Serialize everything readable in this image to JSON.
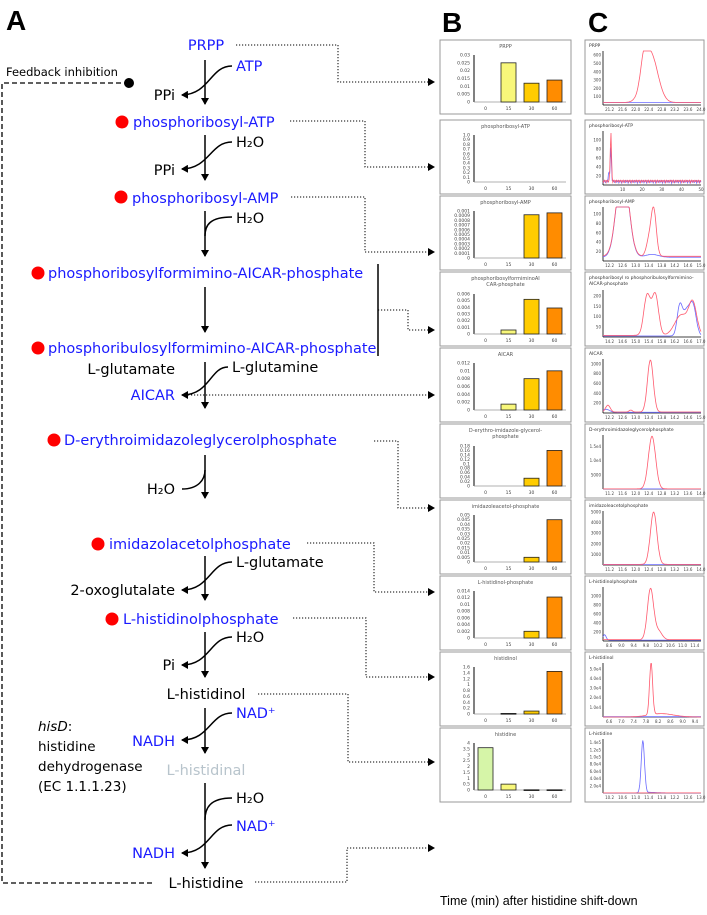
{
  "panels": {
    "a": "A",
    "b": "B",
    "c": "C"
  },
  "pathway": {
    "feedback": "Feedback inhibition",
    "prpp": "PRPP",
    "atp": "ATP",
    "ppi1": "PPi",
    "pr_atp": "phosphoribosyl-ATP",
    "h2o1": "H₂O",
    "ppi2": "PPi",
    "pr_amp": "phosphoribosyl-AMP",
    "h2o2": "H₂O",
    "prfar": "phosphoribosylformimino-AICAR-phosphate",
    "prufar": "phosphoribulosylformimino-AICAR-phosphate",
    "glutamine": "L-glutamine",
    "glutamate1": "L-glutamate",
    "aicar": "AICAR",
    "igp": "D-erythroimidazoleglycerolphosphate",
    "h2o3": "H₂O",
    "iap": "imidazolacetolphosphate",
    "glutamate2": "L-glutamate",
    "oxoglut": "2-oxoglutalate",
    "holp": "L-histidinolphosphate",
    "h2o4": "H₂O",
    "pi": "Pi",
    "histidinol": "L-histidinol",
    "nad1": "NAD⁺",
    "nadh1": "NADH",
    "histidinal": "L-histidinal",
    "h2o5": "H₂O",
    "nad2": "NAD⁺",
    "nadh2": "NADH",
    "histidine": "L-histidine",
    "enzyme": {
      "gene": "hisD",
      "line1": "histidine",
      "line2": "dehydrogenase",
      "line3": "(EC 1.1.1.23)"
    }
  },
  "colors": {
    "metabolite": "#1a1aff",
    "accumulated_dot": "#ff0000",
    "intermediate_gray": "#b8c4cc",
    "red_trace": "#ff5a6e",
    "blue_trace": "#6a6aff",
    "bar_0": "#d6f5a8",
    "bar_15": "#f8f77a",
    "bar_30": "#ffcc00",
    "bar_60": "#ff8c00"
  },
  "xlabel": "Time (min) after histidine shift-down",
  "chart_data": [
    {
      "type": "bar",
      "panel": "B",
      "title": [
        "PRPP"
      ],
      "categories": [
        "0",
        "15",
        "30",
        "60"
      ],
      "values": [
        0,
        0.025,
        0.012,
        0.014
      ],
      "ylim": [
        0,
        0.03
      ],
      "yticks": [
        "0",
        "0.005",
        "0.01",
        "0.015",
        "0.02",
        "0.025",
        "0.03"
      ]
    },
    {
      "type": "bar",
      "panel": "B",
      "title": [
        "phosphoribosyl-ATP"
      ],
      "categories": [
        "0",
        "15",
        "30",
        "60"
      ],
      "values": [
        0,
        0,
        0,
        0
      ],
      "ylim": [
        0,
        1
      ],
      "yticks": [
        "0",
        "0.1",
        "0.2",
        "0.3",
        "0.4",
        "0.5",
        "0.6",
        "0.7",
        "0.8",
        "0.9",
        "1.0"
      ]
    },
    {
      "type": "bar",
      "panel": "B",
      "title": [
        "phosphoribosyl-AMP"
      ],
      "categories": [
        "0",
        "15",
        "30",
        "60"
      ],
      "values": [
        0,
        0,
        0.00092,
        0.00096
      ],
      "ylim": [
        0,
        0.001
      ],
      "yticks": [
        "0",
        "0.0001",
        "0.0002",
        "0.0003",
        "0.0004",
        "0.0005",
        "0.0006",
        "0.0007",
        "0.0008",
        "0.0009",
        "0.001"
      ]
    },
    {
      "type": "bar",
      "panel": "B",
      "title": [
        "phosphoribosylformiminoAI",
        "CAR-phosphate"
      ],
      "categories": [
        "0",
        "15",
        "30",
        "60"
      ],
      "values": [
        0,
        0.0006,
        0.0052,
        0.0039
      ],
      "ylim": [
        0,
        0.006
      ],
      "yticks": [
        "0",
        "0.001",
        "0.002",
        "0.003",
        "0.004",
        "0.005",
        "0.006"
      ]
    },
    {
      "type": "bar",
      "panel": "B",
      "title": [
        "AICAR"
      ],
      "categories": [
        "0",
        "15",
        "30",
        "60"
      ],
      "values": [
        0,
        0.0015,
        0.008,
        0.01
      ],
      "ylim": [
        0,
        0.012
      ],
      "yticks": [
        "0",
        "0.002",
        "0.004",
        "0.006",
        "0.008",
        "0.01",
        "0.012"
      ]
    },
    {
      "type": "bar",
      "panel": "B",
      "title": [
        "D-erythro-imidazole-glycerol-",
        "phosphate"
      ],
      "categories": [
        "0",
        "15",
        "30",
        "60"
      ],
      "values": [
        0,
        0,
        0.035,
        0.16
      ],
      "ylim": [
        0,
        0.18
      ],
      "yticks": [
        "0",
        "0.02",
        "0.04",
        "0.06",
        "0.08",
        "0.1",
        "0.12",
        "0.14",
        "0.16",
        "0.18"
      ]
    },
    {
      "type": "bar",
      "panel": "B",
      "title": [
        "imidazoleacetol-phosphate"
      ],
      "categories": [
        "0",
        "15",
        "30",
        "60"
      ],
      "values": [
        0,
        0,
        0.005,
        0.045
      ],
      "ylim": [
        0,
        0.05
      ],
      "yticks": [
        "0",
        "0.005",
        "0.01",
        "0.015",
        "0.02",
        "0.025",
        "0.03",
        "0.035",
        "0.04",
        "0.045",
        "0.05"
      ]
    },
    {
      "type": "bar",
      "panel": "B",
      "title": [
        "L-histidinol-phosphate"
      ],
      "categories": [
        "0",
        "15",
        "30",
        "60"
      ],
      "values": [
        0,
        0,
        0.002,
        0.0122
      ],
      "ylim": [
        0,
        0.014
      ],
      "yticks": [
        "0",
        "0.002",
        "0.004",
        "0.006",
        "0.008",
        "0.01",
        "0.012",
        "0.014"
      ]
    },
    {
      "type": "bar",
      "panel": "B",
      "title": [
        "histidinol"
      ],
      "categories": [
        "0",
        "15",
        "30",
        "60"
      ],
      "values": [
        0,
        0.02,
        0.1,
        1.45
      ],
      "ylim": [
        0,
        1.6
      ],
      "yticks": [
        "0",
        "0.2",
        "0.4",
        "0.6",
        "0.8",
        "1",
        "1.2",
        "1.4",
        "1.6"
      ]
    },
    {
      "type": "bar",
      "panel": "B",
      "title": [
        "histidine"
      ],
      "categories": [
        "0",
        "15",
        "30",
        "60"
      ],
      "values": [
        3.6,
        0.5,
        0.02,
        0.02
      ],
      "ylim": [
        0,
        4
      ],
      "yticks": [
        "0",
        "0.5",
        "1",
        "1.5",
        "2",
        "2.5",
        "3",
        "3.5",
        "4"
      ]
    },
    {
      "type": "line",
      "panel": "C",
      "title": [
        "PRPP"
      ],
      "xlim": [
        21.0,
        24.0
      ],
      "ylim": [
        0,
        650
      ],
      "xticks": [
        "21.2",
        "21.6",
        "22.0",
        "22.4",
        "22.8",
        "23.2",
        "23.6",
        "24.0"
      ],
      "yticks": [
        "100",
        "200",
        "300",
        "400",
        "500",
        "600"
      ],
      "red": {
        "baseline": 30,
        "peaks": [
          [
            22.45,
            600,
            0.22
          ],
          [
            22.25,
            250,
            0.1
          ]
        ]
      },
      "blue": {
        "baseline": 30,
        "peaks": []
      }
    },
    {
      "type": "line",
      "panel": "C",
      "title": [
        "phosphoribosyl-ATP"
      ],
      "xlim": [
        0,
        50
      ],
      "ylim": [
        0,
        120
      ],
      "xticks": [
        "10",
        "20",
        "30",
        "40",
        "50"
      ],
      "yticks": [
        "20",
        "40",
        "60",
        "80",
        "100"
      ],
      "red": {
        "baseline": 5,
        "peaks": [
          [
            4,
            110,
            0.3
          ]
        ]
      },
      "blue": {
        "baseline": 4,
        "peaks": [
          [
            4,
            75,
            0.3
          ],
          [
            3,
            20,
            0.3
          ]
        ]
      }
    },
    {
      "type": "line",
      "panel": "C",
      "title": [
        "phosphoribosyl-AMP"
      ],
      "xlim": [
        12.0,
        15.0
      ],
      "ylim": [
        0,
        115
      ],
      "xticks": [
        "12.2",
        "12.6",
        "13.0",
        "13.4",
        "13.8",
        "14.2",
        "14.6",
        "15.0"
      ],
      "yticks": [
        "20",
        "40",
        "60",
        "80",
        "100"
      ],
      "red": {
        "baseline": 10,
        "peaks": [
          [
            12.6,
            200,
            0.18
          ],
          [
            13.55,
            100,
            0.08
          ],
          [
            13.4,
            30,
            0.08
          ]
        ]
      },
      "blue": {
        "baseline": 8,
        "peaks": [
          [
            12.6,
            200,
            0.18
          ],
          [
            13.5,
            6,
            0.2
          ]
        ]
      }
    },
    {
      "type": "line",
      "panel": "C",
      "title": [
        "phosphoribosyl ro phosphoribulosylformimino-",
        "AICAR-phosphate"
      ],
      "xlim": [
        14.0,
        17.0
      ],
      "ylim": [
        0,
        230
      ],
      "xticks": [
        "14.2",
        "14.6",
        "15.0",
        "15.4",
        "15.8",
        "16.2",
        "16.6",
        "17.0"
      ],
      "yticks": [
        "50",
        "100",
        "150",
        "200"
      ],
      "red": {
        "baseline": 8,
        "peaks": [
          [
            15.35,
            195,
            0.1
          ],
          [
            15.6,
            200,
            0.1
          ],
          [
            16.4,
            100,
            0.2
          ],
          [
            16.75,
            150,
            0.12
          ]
        ]
      },
      "blue": {
        "baseline": 5,
        "peaks": [
          [
            16.35,
            145,
            0.08
          ],
          [
            16.55,
            110,
            0.1
          ],
          [
            16.75,
            150,
            0.1
          ]
        ]
      }
    },
    {
      "type": "line",
      "panel": "C",
      "title": [
        "AICAR"
      ],
      "xlim": [
        12.0,
        15.0
      ],
      "ylim": [
        0,
        1100
      ],
      "xticks": [
        "12.2",
        "12.6",
        "13.0",
        "13.4",
        "13.8",
        "14.2",
        "14.6",
        "15.0"
      ],
      "yticks": [
        "200",
        "400",
        "600",
        "800",
        "1000"
      ],
      "red": {
        "baseline": 20,
        "peaks": [
          [
            13.45,
            1060,
            0.09
          ],
          [
            12.15,
            140,
            0.07
          ],
          [
            12.85,
            40,
            0.05
          ]
        ]
      },
      "blue": {
        "baseline": 15,
        "peaks": [
          [
            12.1,
            60,
            0.1
          ]
        ]
      }
    },
    {
      "type": "line",
      "panel": "C",
      "title": [
        "D-erythroimidazoleglycerolphosphate"
      ],
      "xlim": [
        11.0,
        14.0
      ],
      "ylim": [
        0,
        19000
      ],
      "xticks": [
        "11.2",
        "11.6",
        "12.0",
        "12.4",
        "12.8",
        "13.2",
        "13.6",
        "14.0"
      ],
      "yticks": [
        "5000",
        "1.0e4",
        "1.5e4"
      ],
      "red": {
        "baseline": 50,
        "peaks": [
          [
            12.5,
            18500,
            0.11
          ]
        ]
      },
      "blue": {
        "baseline": 30,
        "peaks": []
      }
    },
    {
      "type": "line",
      "panel": "C",
      "title": [
        "imidazoleacetolphosphate"
      ],
      "xlim": [
        11.0,
        14.0
      ],
      "ylim": [
        0,
        5100
      ],
      "xticks": [
        "11.2",
        "11.6",
        "12.0",
        "12.4",
        "12.8",
        "13.2",
        "13.6",
        "14.0"
      ],
      "yticks": [
        "1000",
        "2000",
        "3000",
        "4000",
        "5000"
      ],
      "red": {
        "baseline": 60,
        "peaks": [
          [
            12.55,
            4950,
            0.1
          ]
        ]
      },
      "blue": {
        "baseline": 40,
        "peaks": []
      }
    },
    {
      "type": "line",
      "panel": "C",
      "title": [
        "L-histidinolphosphate"
      ],
      "xlim": [
        8.4,
        11.6
      ],
      "ylim": [
        0,
        1200
      ],
      "xticks": [
        "8.6",
        "9.0",
        "9.4",
        "9.8",
        "10.2",
        "10.6",
        "11.0",
        "11.4"
      ],
      "yticks": [
        "200",
        "400",
        "600",
        "800",
        "1000"
      ],
      "red": {
        "baseline": 30,
        "peaks": [
          [
            9.95,
            1120,
            0.1
          ],
          [
            10.2,
            200,
            0.12
          ]
        ]
      },
      "blue": {
        "baseline": 20,
        "peaks": [
          [
            8.45,
            120,
            0.05
          ]
        ]
      }
    },
    {
      "type": "line",
      "panel": "C",
      "title": [
        "L-histidinol"
      ],
      "xlim": [
        6.4,
        9.6
      ],
      "ylim": [
        0,
        56000
      ],
      "xticks": [
        "6.6",
        "7.0",
        "7.4",
        "7.8",
        "8.2",
        "8.6",
        "9.0",
        "9.4"
      ],
      "yticks": [
        "1.0e4",
        "2.0e4",
        "3.0e4",
        "4.0e4",
        "5.0e4"
      ],
      "red": {
        "baseline": 0,
        "peaks": [
          [
            7.97,
            54000,
            0.05
          ],
          [
            8.3,
            3500,
            0.4
          ]
        ]
      },
      "blue": {
        "baseline": 300,
        "peaks": []
      }
    },
    {
      "type": "line",
      "panel": "C",
      "title": [
        "L-histidine"
      ],
      "xlim": [
        10.0,
        13.0
      ],
      "ylim": [
        0,
        150000
      ],
      "xticks": [
        "10.2",
        "10.6",
        "11.0",
        "11.4",
        "11.8",
        "12.2",
        "12.6",
        "13.0"
      ],
      "yticks": [
        "2.0e4",
        "4.0e4",
        "6.0e4",
        "8.0e4",
        "1.0e5",
        "1.2e5",
        "1.4e5"
      ],
      "red": {
        "baseline": 200,
        "peaks": []
      },
      "blue": {
        "baseline": 300,
        "peaks": [
          [
            11.22,
            145000,
            0.05
          ],
          [
            11.45,
            1500,
            0.2
          ]
        ]
      }
    }
  ]
}
